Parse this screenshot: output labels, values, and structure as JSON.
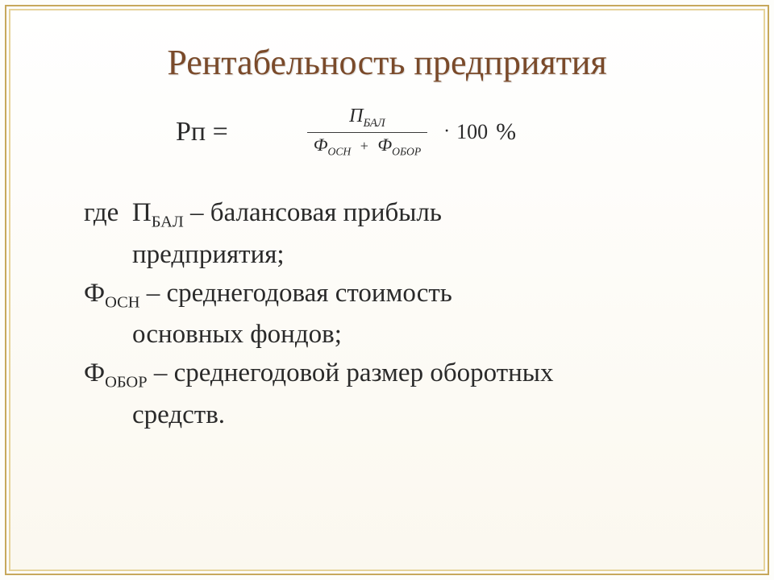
{
  "title": "Рентабельность предприятия",
  "formula": {
    "lhs": "Рп =",
    "numerator": {
      "sym": "П",
      "sub": "БАЛ"
    },
    "denominator": {
      "t1": {
        "sym": "Ф",
        "sub": "ОСН"
      },
      "plus": "+",
      "t2": {
        "sym": "Ф",
        "sub": "ОБОР"
      }
    },
    "dot": "·",
    "hundred": "100",
    "percent": "%"
  },
  "defs": {
    "lead": "где",
    "d1": {
      "sym": "П",
      "sub": "БАЛ",
      "dash": "–",
      "text": "балансовая прибыль",
      "text2": "предприятия;"
    },
    "d2": {
      "sym": "Ф",
      "sub": "ОСН",
      "dash": "–",
      "text": "среднегодовая стоимость",
      "text2": "основных фондов;"
    },
    "d3": {
      "sym": "Ф",
      "sub": "ОБОР",
      "dash": "–",
      "text": "среднегодовой размер оборотных",
      "text2": "средств."
    }
  },
  "colors": {
    "title_color": "#7a4a2a",
    "border_color": "#c7a85b",
    "text_color": "#2a2a2a",
    "background": "#fdfdfa"
  }
}
